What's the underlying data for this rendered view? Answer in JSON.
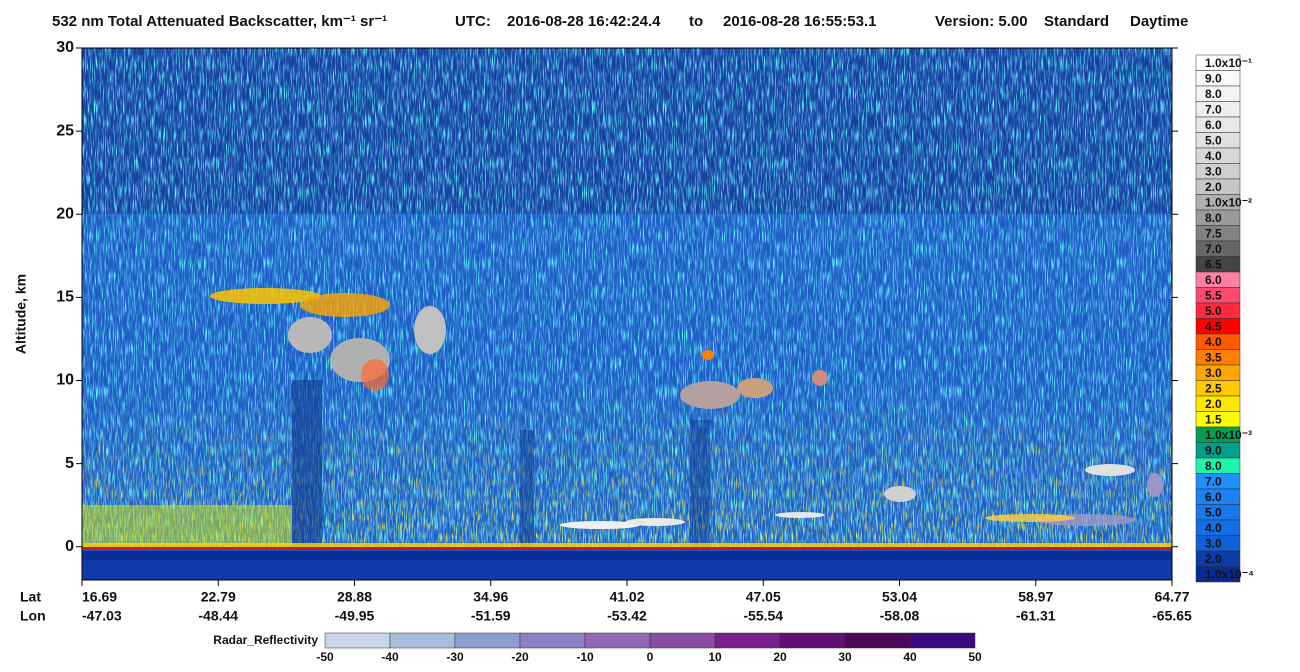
{
  "chart_data": {
    "type": "heatmap",
    "title": "532 nm Total Attenuated Backscatter, km⁻¹ sr⁻¹",
    "utc_label": "UTC:",
    "start_time": "2016-08-28 16:42:24.4",
    "to": "to",
    "end_time": "2016-08-28 16:55:53.1",
    "version": "Version: 5.00",
    "product": "Standard",
    "daylight": "Daytime",
    "y_label": "Altitude, km",
    "ylim": [
      -2,
      30
    ],
    "yticks": [
      0,
      5,
      10,
      15,
      20,
      25,
      30
    ],
    "lat_label": "Lat",
    "lon_label": "Lon",
    "lat": [
      16.69,
      22.79,
      28.88,
      34.96,
      41.02,
      47.05,
      53.04,
      58.97,
      64.77
    ],
    "lon": [
      -47.03,
      -48.44,
      -49.95,
      -51.59,
      -53.42,
      -55.54,
      -58.08,
      -61.31,
      -65.65
    ],
    "colorbar": [
      {
        "label": "1.0x10⁻¹",
        "color": "#ffffff"
      },
      {
        "label": "9.0",
        "color": "#fafafa"
      },
      {
        "label": "8.0",
        "color": "#f4f4f4"
      },
      {
        "label": "7.0",
        "color": "#eeeeee"
      },
      {
        "label": "6.0",
        "color": "#e8e8e8"
      },
      {
        "label": "5.0",
        "color": "#e0e0e0"
      },
      {
        "label": "4.0",
        "color": "#d8d8d8"
      },
      {
        "label": "3.0",
        "color": "#d0d0d0"
      },
      {
        "label": "2.0",
        "color": "#c6c6c6"
      },
      {
        "label": "1.0x10⁻²",
        "color": "#b0b0b0"
      },
      {
        "label": "8.0",
        "color": "#9a9a9a"
      },
      {
        "label": "7.5",
        "color": "#828282"
      },
      {
        "label": "7.0",
        "color": "#666666"
      },
      {
        "label": "6.5",
        "color": "#444444"
      },
      {
        "label": "6.0",
        "color": "#ff7fa0"
      },
      {
        "label": "5.5",
        "color": "#ff4a70"
      },
      {
        "label": "5.0",
        "color": "#ff2a3c"
      },
      {
        "label": "4.5",
        "color": "#ff0000"
      },
      {
        "label": "4.0",
        "color": "#ff5a00"
      },
      {
        "label": "3.5",
        "color": "#ff7d00"
      },
      {
        "label": "3.0",
        "color": "#ffa500"
      },
      {
        "label": "2.5",
        "color": "#ffc800"
      },
      {
        "label": "2.0",
        "color": "#ffe600"
      },
      {
        "label": "1.5",
        "color": "#ffff00"
      },
      {
        "label": "1.0x10⁻³",
        "color": "#00a050"
      },
      {
        "label": "9.0",
        "color": "#00a08a"
      },
      {
        "label": "8.0",
        "color": "#20f5b0"
      },
      {
        "label": "7.0",
        "color": "#1e90ff"
      },
      {
        "label": "6.0",
        "color": "#1a82f5"
      },
      {
        "label": "5.0",
        "color": "#1878ee"
      },
      {
        "label": "4.0",
        "color": "#146ee6"
      },
      {
        "label": "3.0",
        "color": "#1060d8"
      },
      {
        "label": "2.0",
        "color": "#0a3caa"
      },
      {
        "label": "1.0x10⁻⁴",
        "color": "#062a96"
      }
    ],
    "radar": {
      "label": "Radar_Reflectivity",
      "ticks": [
        -50,
        -40,
        -30,
        -20,
        -10,
        0,
        10,
        20,
        30,
        40,
        50
      ],
      "colors": [
        "#c8d6e8",
        "#a8bcdc",
        "#8c9ed0",
        "#8a80c4",
        "#9068b4",
        "#8a4ea4",
        "#7a2090",
        "#601070",
        "#4a0a58",
        "#3a0a80"
      ]
    }
  }
}
